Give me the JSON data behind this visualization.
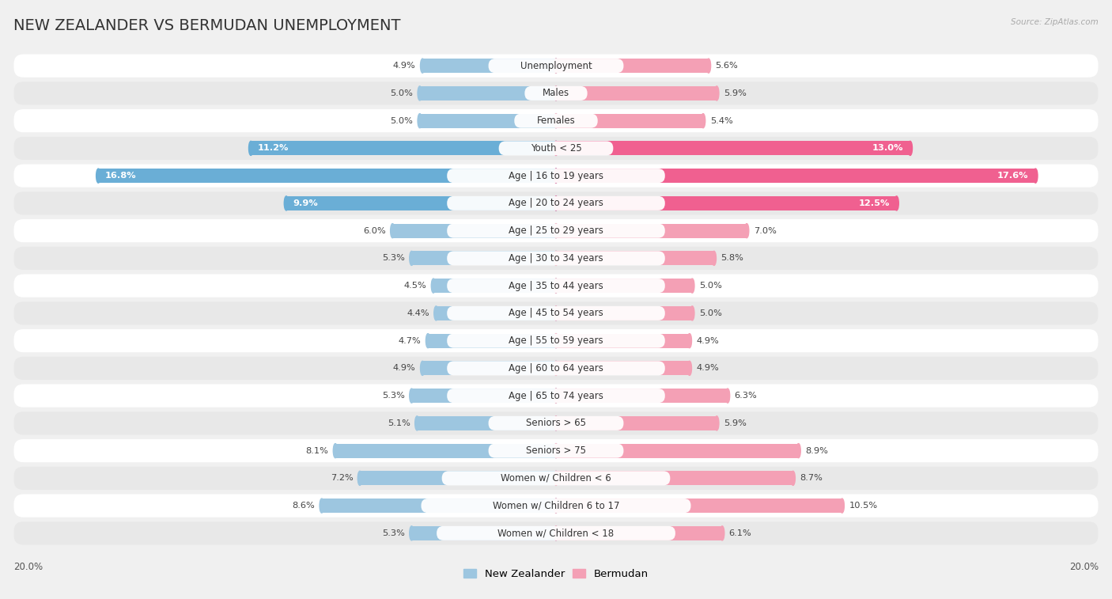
{
  "title": "NEW ZEALANDER VS BERMUDAN UNEMPLOYMENT",
  "source": "Source: ZipAtlas.com",
  "categories": [
    "Unemployment",
    "Males",
    "Females",
    "Youth < 25",
    "Age | 16 to 19 years",
    "Age | 20 to 24 years",
    "Age | 25 to 29 years",
    "Age | 30 to 34 years",
    "Age | 35 to 44 years",
    "Age | 45 to 54 years",
    "Age | 55 to 59 years",
    "Age | 60 to 64 years",
    "Age | 65 to 74 years",
    "Seniors > 65",
    "Seniors > 75",
    "Women w/ Children < 6",
    "Women w/ Children 6 to 17",
    "Women w/ Children < 18"
  ],
  "nz_values": [
    4.9,
    5.0,
    5.0,
    11.2,
    16.8,
    9.9,
    6.0,
    5.3,
    4.5,
    4.4,
    4.7,
    4.9,
    5.3,
    5.1,
    8.1,
    7.2,
    8.6,
    5.3
  ],
  "bm_values": [
    5.6,
    5.9,
    5.4,
    13.0,
    17.6,
    12.5,
    7.0,
    5.8,
    5.0,
    5.0,
    4.9,
    4.9,
    6.3,
    5.9,
    8.9,
    8.7,
    10.5,
    6.1
  ],
  "nz_color": "#9dc6e0",
  "bm_color": "#f4a0b5",
  "nz_highlight_color": "#6aaed6",
  "bm_highlight_color": "#f06090",
  "bg_color": "#f0f0f0",
  "row_white_color": "#ffffff",
  "row_gray_color": "#e8e8e8",
  "legend_nz": "New Zealander",
  "legend_bm": "Bermudan",
  "x_max": 20.0,
  "axis_label_left": "20.0%",
  "axis_label_right": "20.0%",
  "highlight_rows": [
    3,
    4,
    5
  ],
  "title_fontsize": 14,
  "label_fontsize": 8.5,
  "value_fontsize": 8.2
}
